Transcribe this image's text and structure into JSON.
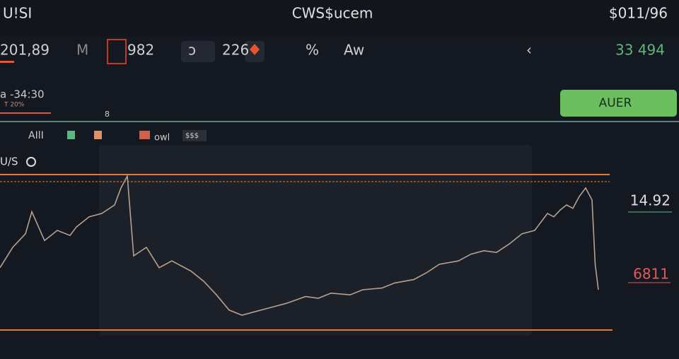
{
  "header": {
    "left": "U!SI",
    "title": "CWS$ucem",
    "right": "$011/96"
  },
  "toolbar": {
    "price": "201,89",
    "items": [
      "M",
      "982",
      "ↄ",
      "226",
      "%",
      "Aw",
      "‹"
    ],
    "change": "33 494"
  },
  "button": "AUER",
  "info": {
    "range": "a -34:30",
    "sub": "T 20%",
    "mark": "8",
    "legend": [
      "AIlI",
      "owl",
      "$$$"
    ],
    "pair": "U/S"
  },
  "price_labels": [
    "14.92",
    "6811"
  ],
  "chart_data": {
    "type": "line",
    "color": "#b8a08e",
    "xlim": [
      0,
      100
    ],
    "ylim": [
      0,
      100
    ],
    "x": [
      0,
      2,
      4,
      5,
      7,
      9,
      11,
      12,
      14,
      16,
      18,
      19,
      20,
      21,
      23,
      25,
      27,
      30,
      32,
      34,
      36,
      38,
      40,
      43,
      45,
      48,
      50,
      52,
      55,
      57,
      60,
      62,
      65,
      67,
      69,
      72,
      74,
      76,
      78,
      80,
      82,
      84,
      86,
      87,
      88,
      89,
      90,
      91,
      92,
      93,
      93.5,
      94
    ],
    "values": [
      38,
      50,
      58,
      71,
      54,
      60,
      57,
      62,
      68,
      70,
      75,
      85,
      92,
      45,
      50,
      38,
      42,
      36,
      30,
      22,
      13,
      10,
      12,
      15,
      17,
      21,
      20,
      23,
      22,
      25,
      26,
      29,
      31,
      35,
      40,
      42,
      46,
      48,
      47,
      52,
      58,
      60,
      70,
      68,
      72,
      75,
      73,
      80,
      85,
      78,
      40,
      25
    ]
  }
}
